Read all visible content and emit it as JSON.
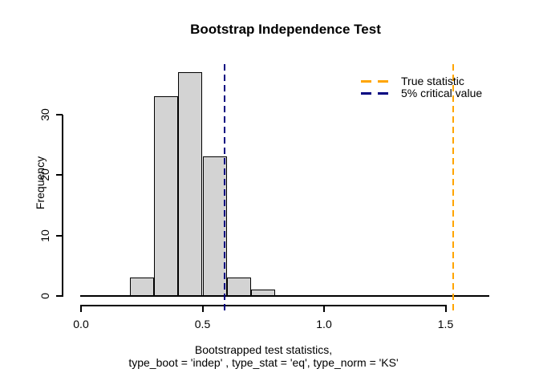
{
  "title": "Bootstrap Independence Test",
  "chart_data": {
    "type": "bar",
    "subtype": "histogram",
    "title": "Bootstrap Independence Test",
    "ylabel": "Frequency",
    "xlabel_lines": [
      "Bootstrapped test statistics,",
      "type_boot = 'indep' , type_stat = 'eq', type_norm = 'KS'"
    ],
    "bin_edges": [
      0.2,
      0.3,
      0.4,
      0.5,
      0.6,
      0.7,
      0.8
    ],
    "counts": [
      3,
      33,
      37,
      23,
      3,
      1
    ],
    "n_total": 100,
    "bar_fill": "#d3d3d3",
    "bar_border": "#000000",
    "axis_color": "#000000",
    "xlim": [
      0.0,
      1.68
    ],
    "ylim": [
      0,
      30
    ],
    "grid": false,
    "xticks": {
      "values": [
        0.0,
        0.5,
        1.0,
        1.5
      ],
      "labels": [
        "0.0",
        "0.5",
        "1.0",
        "1.5"
      ]
    },
    "yticks": {
      "values": [
        0,
        10,
        20,
        30
      ],
      "labels": [
        "0",
        "10",
        "20",
        "30"
      ]
    },
    "vlines": [
      {
        "name": "true-statistic-line",
        "value": 1.53,
        "color": "#FFA500",
        "style": "dashed"
      },
      {
        "name": "critical-value-line",
        "value": 0.59,
        "color": "#000080",
        "style": "dashed"
      }
    ],
    "legend": {
      "position": "top-right",
      "border": "none",
      "items": [
        {
          "label": "True statistic",
          "color": "#FFA500",
          "style": "dashed"
        },
        {
          "label": "5% critical value",
          "color": "#000080",
          "style": "dashed"
        }
      ]
    }
  }
}
